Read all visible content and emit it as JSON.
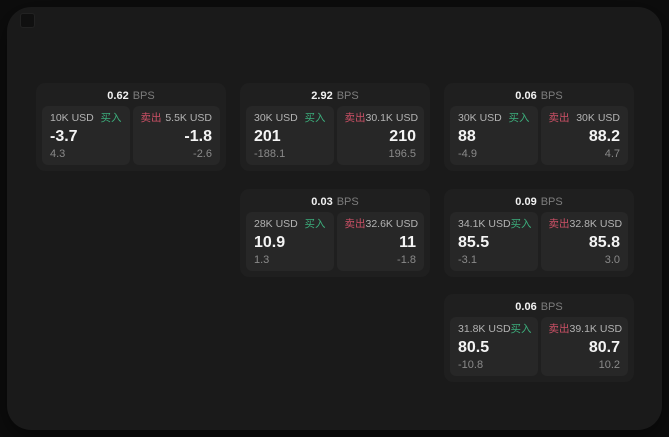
{
  "labels": {
    "bps": "BPS",
    "buy": "买入",
    "sell": "卖出"
  },
  "colors": {
    "background": "#0d0d0d",
    "window": "#1a1a1a",
    "card": "#1f1f1f",
    "panel": "#272727",
    "buy": "#3cae7c",
    "sell": "#cc5066",
    "primary_text": "#f4f4f4",
    "secondary_text": "#8a8a8a"
  },
  "cards": [
    {
      "bps": "0.62",
      "col": 1,
      "row": 1,
      "buy": {
        "amount": "10K USD",
        "price": "-3.7",
        "delta": "4.3"
      },
      "sell": {
        "amount": "5.5K USD",
        "price": "-1.8",
        "delta": "-2.6"
      }
    },
    {
      "bps": "2.92",
      "col": 2,
      "row": 1,
      "buy": {
        "amount": "30K USD",
        "price": "201",
        "delta": "-188.1"
      },
      "sell": {
        "amount": "30.1K USD",
        "price": "210",
        "delta": "196.5"
      }
    },
    {
      "bps": "0.06",
      "col": 3,
      "row": 1,
      "buy": {
        "amount": "30K USD",
        "price": "88",
        "delta": "-4.9"
      },
      "sell": {
        "amount": "30K USD",
        "price": "88.2",
        "delta": "4.7"
      }
    },
    {
      "bps": "0.03",
      "col": 2,
      "row": 2,
      "buy": {
        "amount": "28K USD",
        "price": "10.9",
        "delta": "1.3"
      },
      "sell": {
        "amount": "32.6K USD",
        "price": "11",
        "delta": "-1.8"
      }
    },
    {
      "bps": "0.09",
      "col": 3,
      "row": 2,
      "buy": {
        "amount": "34.1K USD",
        "price": "85.5",
        "delta": "-3.1"
      },
      "sell": {
        "amount": "32.8K USD",
        "price": "85.8",
        "delta": "3.0"
      }
    },
    {
      "bps": "0.06",
      "col": 3,
      "row": 3,
      "buy": {
        "amount": "31.8K USD",
        "price": "80.5",
        "delta": "-10.8"
      },
      "sell": {
        "amount": "39.1K USD",
        "price": "80.7",
        "delta": "10.2"
      }
    }
  ]
}
